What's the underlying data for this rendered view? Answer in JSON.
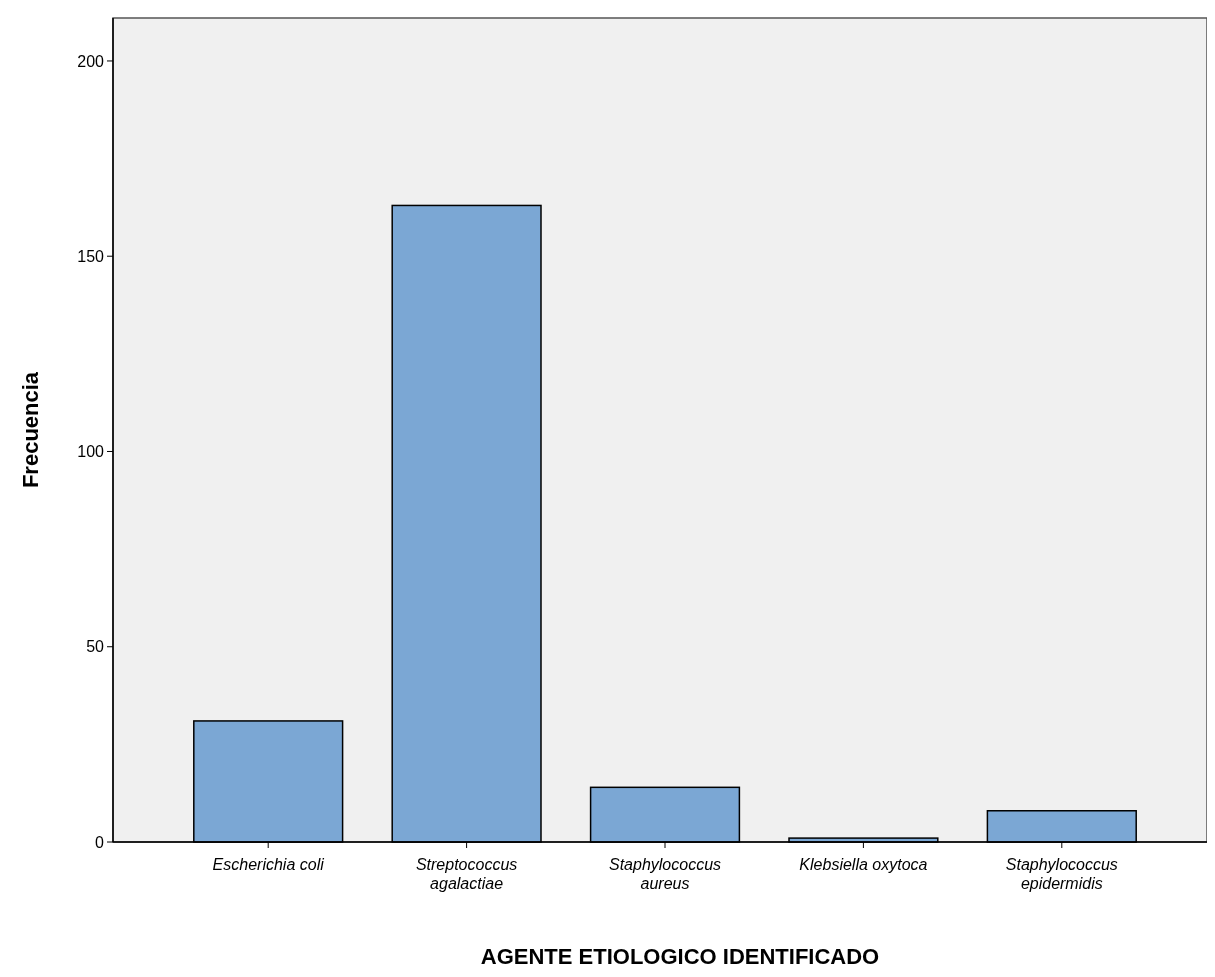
{
  "chart_data": {
    "type": "bar",
    "xlabel": "AGENTE ETIOLOGICO IDENTIFICADO",
    "ylabel": "Frecuencia",
    "categories": [
      "Escherichia coli",
      "Streptococcus agalactiae",
      "Staphylococcus aureus",
      "Klebsiella oxytoca",
      "Staphylococcus epidermidis"
    ],
    "values": [
      31,
      163,
      14,
      1,
      8
    ],
    "color": "#7ba7d4",
    "ylim": [
      0,
      211
    ],
    "yticks": [
      0,
      50,
      100,
      150,
      200
    ],
    "grid": false
  }
}
